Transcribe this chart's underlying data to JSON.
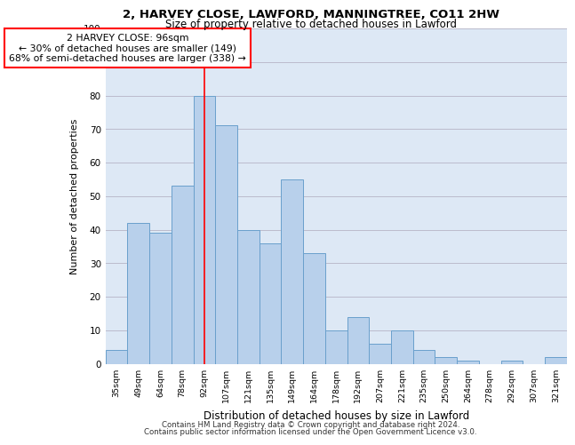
{
  "title": "2, HARVEY CLOSE, LAWFORD, MANNINGTREE, CO11 2HW",
  "subtitle": "Size of property relative to detached houses in Lawford",
  "xlabel": "Distribution of detached houses by size in Lawford",
  "ylabel": "Number of detached properties",
  "categories": [
    "35sqm",
    "49sqm",
    "64sqm",
    "78sqm",
    "92sqm",
    "107sqm",
    "121sqm",
    "135sqm",
    "149sqm",
    "164sqm",
    "178sqm",
    "192sqm",
    "207sqm",
    "221sqm",
    "235sqm",
    "250sqm",
    "264sqm",
    "278sqm",
    "292sqm",
    "307sqm",
    "321sqm"
  ],
  "values": [
    4,
    42,
    39,
    53,
    80,
    71,
    40,
    36,
    55,
    33,
    10,
    14,
    6,
    10,
    4,
    2,
    1,
    0,
    1,
    0,
    2
  ],
  "bar_color": "#b8d0eb",
  "bar_edge_color": "#6aa0cc",
  "marker_index": 4,
  "marker_label": "2 HARVEY CLOSE: 96sqm",
  "annotation_line1": "← 30% of detached houses are smaller (149)",
  "annotation_line2": "68% of semi-detached houses are larger (338) →",
  "annotation_box_color": "white",
  "annotation_box_edge_color": "red",
  "marker_line_color": "red",
  "ylim": [
    0,
    100
  ],
  "yticks": [
    0,
    10,
    20,
    30,
    40,
    50,
    60,
    70,
    80,
    90,
    100
  ],
  "grid_color": "#bbbbcc",
  "bg_color": "#dde8f5",
  "footer1": "Contains HM Land Registry data © Crown copyright and database right 2024.",
  "footer2": "Contains public sector information licensed under the Open Government Licence v3.0."
}
